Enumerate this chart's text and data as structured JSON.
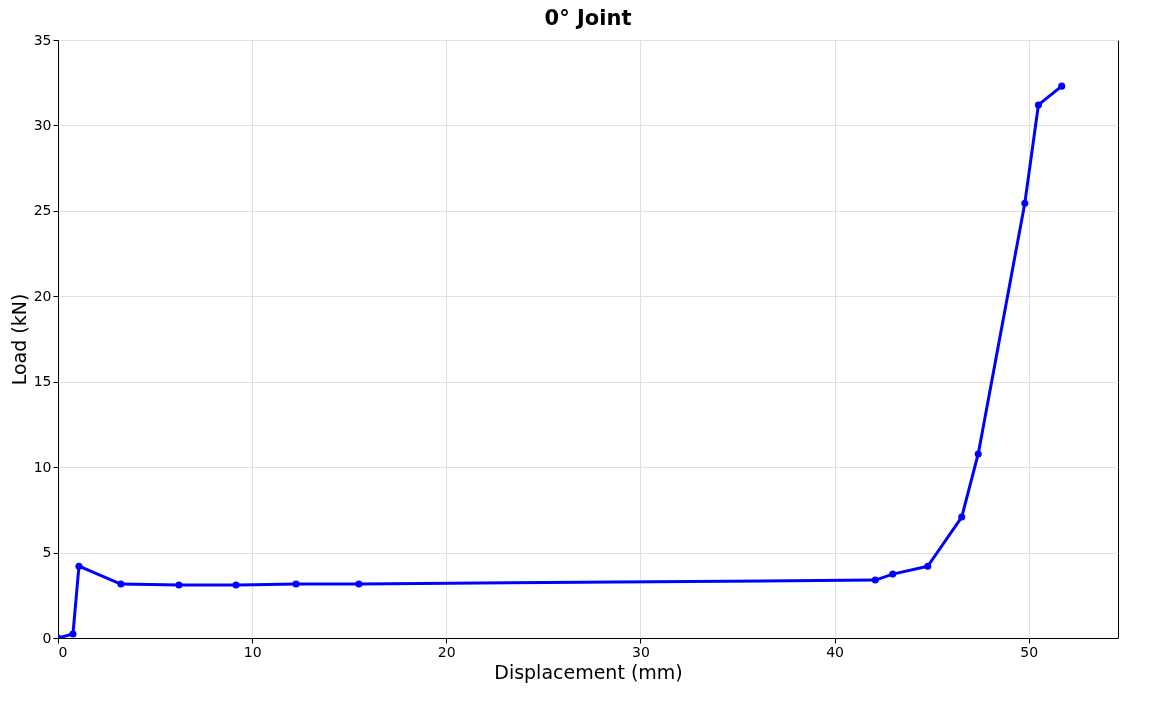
{
  "chart_data": {
    "type": "line",
    "title": "0° Joint",
    "xlabel": "Displacement (mm)",
    "ylabel": "Load (kN)",
    "x": [
      0,
      0.77,
      1.08,
      3.24,
      6.23,
      9.17,
      12.26,
      15.5,
      42.1,
      43.0,
      44.8,
      46.55,
      47.4,
      49.8,
      50.5,
      51.7
    ],
    "series": [
      {
        "color": "#0000ff",
        "values": [
          0,
          0.23,
          4.2,
          3.16,
          3.1,
          3.1,
          3.16,
          3.16,
          3.39,
          3.74,
          4.2,
          7.08,
          10.77,
          25.45,
          31.2,
          32.3
        ]
      }
    ],
    "xlim": [
      0,
      54.6
    ],
    "xticks": [
      0,
      10,
      20,
      30,
      40,
      50
    ],
    "ylim": [
      0,
      35
    ],
    "yticks": [
      0,
      5,
      10,
      15,
      20,
      25,
      30,
      35
    ],
    "grid": true,
    "marker": "circle",
    "line_style": "solid"
  }
}
